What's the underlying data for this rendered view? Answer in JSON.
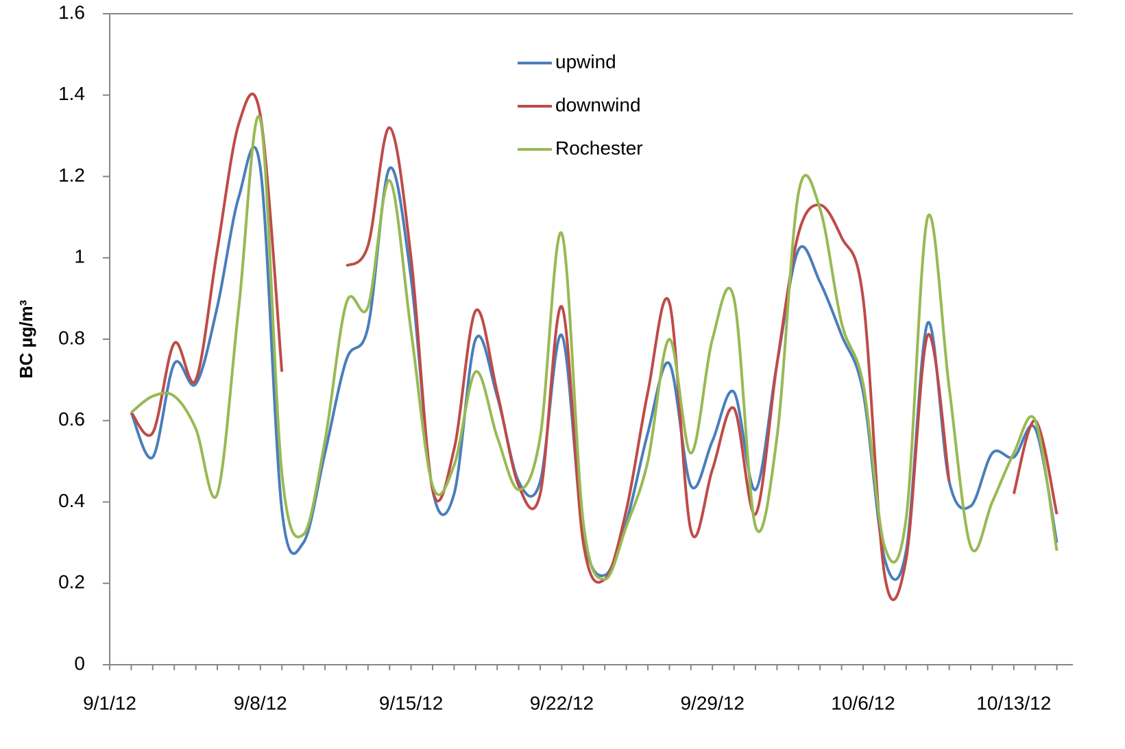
{
  "chart_data": {
    "type": "line",
    "y_label": "BC µg/m³",
    "categories": [
      "9/1/12",
      null,
      null,
      null,
      null,
      null,
      null,
      "9/8/12",
      null,
      null,
      null,
      null,
      null,
      null,
      "9/15/12",
      null,
      null,
      null,
      null,
      null,
      null,
      "9/22/12",
      null,
      null,
      null,
      null,
      null,
      null,
      "9/29/12",
      null,
      null,
      null,
      null,
      null,
      null,
      "10/6/12",
      null,
      null,
      null,
      null,
      null,
      null,
      "10/13/12",
      null,
      null
    ],
    "ylim": [
      0,
      1.6
    ],
    "yticks": [
      0,
      0.2,
      0.4,
      0.6,
      0.8,
      1,
      1.2,
      1.4,
      1.6
    ],
    "legend": "top",
    "series": [
      {
        "name": "upwind",
        "color": "#4a7ebb",
        "values": [
          null,
          0.62,
          0.51,
          0.74,
          0.69,
          0.88,
          1.15,
          1.22,
          0.38,
          0.3,
          0.52,
          0.75,
          0.83,
          1.22,
          0.95,
          0.43,
          0.42,
          0.8,
          0.66,
          0.45,
          0.45,
          0.81,
          0.32,
          0.22,
          0.35,
          0.57,
          0.74,
          0.44,
          0.55,
          0.67,
          0.43,
          0.74,
          1.02,
          0.94,
          0.81,
          0.67,
          0.26,
          0.28,
          0.84,
          0.45,
          0.39,
          0.52,
          0.51,
          0.58,
          0.3
        ]
      },
      {
        "name": "downwind",
        "color": "#be4b48",
        "values": [
          null,
          0.62,
          0.57,
          0.79,
          0.7,
          1.02,
          1.33,
          1.35,
          0.72,
          null,
          null,
          0.98,
          1.03,
          1.32,
          1.0,
          0.43,
          0.53,
          0.87,
          0.67,
          0.44,
          0.42,
          0.88,
          0.3,
          0.21,
          0.38,
          0.67,
          0.89,
          0.33,
          0.48,
          0.63,
          0.37,
          0.74,
          1.06,
          1.13,
          1.05,
          0.9,
          0.22,
          0.26,
          0.81,
          0.45,
          null,
          null,
          0.42,
          0.6,
          0.37
        ]
      },
      {
        "name": "Rochester",
        "color": "#98b954",
        "values": [
          null,
          0.62,
          0.66,
          0.66,
          0.58,
          0.42,
          0.88,
          1.34,
          0.47,
          0.32,
          0.55,
          0.89,
          0.88,
          1.19,
          0.82,
          0.44,
          0.49,
          0.72,
          0.56,
          0.43,
          0.56,
          1.06,
          0.35,
          0.21,
          0.34,
          0.5,
          0.8,
          0.52,
          0.8,
          0.9,
          0.34,
          0.56,
          1.16,
          1.12,
          0.84,
          0.69,
          0.29,
          0.36,
          1.1,
          0.68,
          0.29,
          0.4,
          0.52,
          0.6,
          0.28
        ]
      }
    ]
  }
}
